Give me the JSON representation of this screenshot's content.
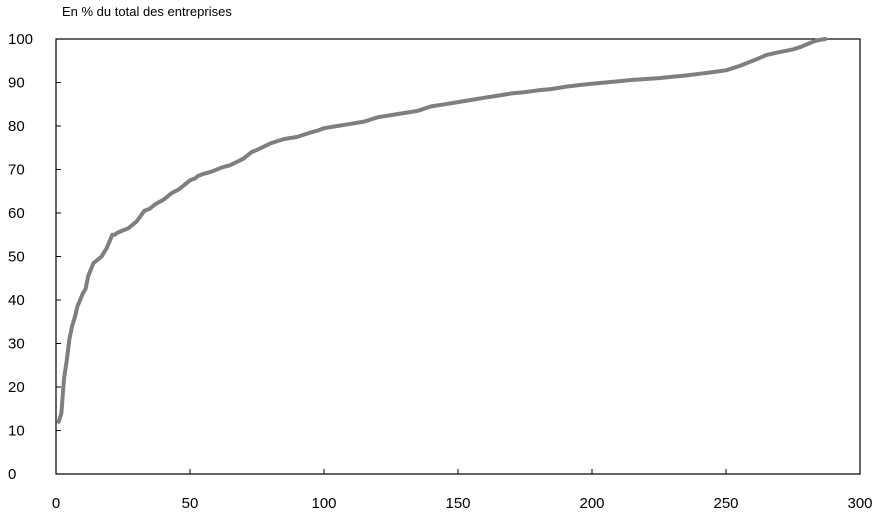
{
  "chart_data": {
    "type": "line",
    "title": "",
    "unit_label": "En % du total des entreprises",
    "xlabel": "",
    "ylabel": "",
    "xlim": [
      0,
      300
    ],
    "ylim": [
      0,
      100
    ],
    "x_ticks": [
      "0",
      "50",
      "100",
      "150",
      "200",
      "250",
      "300"
    ],
    "y_ticks": [
      "0",
      "10",
      "20",
      "30",
      "40",
      "50",
      "60",
      "70",
      "80",
      "90",
      "100"
    ],
    "grid": false,
    "legend": "none",
    "line_color": "#7f7f7f",
    "series": [
      {
        "x": [
          1,
          2,
          3,
          4,
          5,
          6,
          7,
          8,
          9,
          10,
          11,
          12,
          13,
          14,
          15,
          17,
          19,
          21,
          22,
          23,
          25,
          27,
          30,
          33,
          35,
          36,
          37,
          40,
          43,
          46,
          48,
          50,
          52,
          53,
          55,
          58,
          62,
          65,
          70,
          73,
          75,
          80,
          85,
          90,
          95,
          98,
          100,
          105,
          110,
          115,
          120,
          125,
          130,
          135,
          140,
          145,
          150,
          155,
          160,
          165,
          170,
          175,
          180,
          185,
          190,
          195,
          200,
          205,
          210,
          215,
          220,
          225,
          230,
          235,
          240,
          245,
          250,
          255,
          260,
          262,
          265,
          270,
          275,
          278,
          281,
          283,
          285,
          287
        ],
        "y": [
          12,
          14,
          22,
          26,
          31,
          34,
          36,
          38.5,
          40,
          41.5,
          42.5,
          45.5,
          47,
          48.5,
          49,
          50,
          52,
          55,
          55,
          55.5,
          56,
          56.5,
          58,
          60.5,
          61,
          61.5,
          62,
          63,
          64.5,
          65.5,
          66.5,
          67.5,
          68,
          68.5,
          69,
          69.5,
          70.5,
          71,
          72.5,
          74,
          74.5,
          76,
          77,
          77.5,
          78.5,
          79,
          79.5,
          80,
          80.5,
          81,
          82,
          82.5,
          83,
          83.5,
          84.5,
          85,
          85.5,
          86,
          86.5,
          87,
          87.5,
          87.8,
          88.2,
          88.5,
          89,
          89.4,
          89.7,
          90,
          90.3,
          90.6,
          90.8,
          91,
          91.3,
          91.6,
          92,
          92.4,
          92.8,
          93.8,
          95,
          95.5,
          96.3,
          97,
          97.6,
          98.2,
          99,
          99.5,
          99.8,
          100
        ]
      }
    ]
  }
}
